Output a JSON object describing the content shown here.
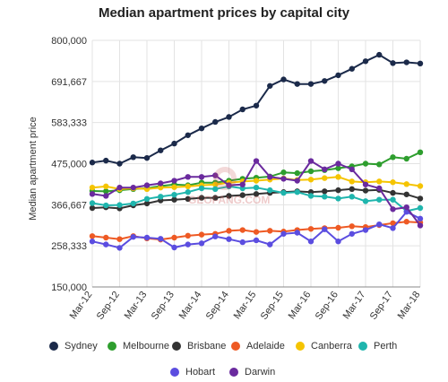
{
  "chart_data": {
    "type": "line",
    "title": "Median apartment prices by capital city",
    "xlabel": "",
    "ylabel": "Median apartment price",
    "ylim": [
      150000,
      800000
    ],
    "yticks": [
      150000,
      258333,
      366667,
      475000,
      583333,
      691667,
      800000
    ],
    "ytick_labels": [
      "150,000",
      "258,333",
      "366,667",
      "475,000",
      "583,333",
      "691,667",
      "800,000"
    ],
    "xtick_labels": [
      "Mar-12",
      "Sep-12",
      "Mar-13",
      "Sep-13",
      "Mar-14",
      "Sep-14",
      "Mar-15",
      "Sep-15",
      "Mar-16",
      "Sep-16",
      "Mar-17",
      "Sep-17",
      "Mar-18"
    ],
    "x": [
      "Mar-12",
      "Jun-12",
      "Sep-12",
      "Dec-12",
      "Mar-13",
      "Jun-13",
      "Sep-13",
      "Dec-13",
      "Mar-14",
      "Jun-14",
      "Sep-14",
      "Dec-14",
      "Mar-15",
      "Jun-15",
      "Sep-15",
      "Dec-15",
      "Mar-16",
      "Jun-16",
      "Sep-16",
      "Dec-16",
      "Mar-17",
      "Jun-17",
      "Sep-17",
      "Dec-17",
      "Mar-18"
    ],
    "grid": true,
    "legend_position": "bottom",
    "series": [
      {
        "name": "Sydney",
        "color": "#1b2a4a",
        "values": [
          478000,
          483000,
          475000,
          492000,
          490000,
          510000,
          528000,
          550000,
          568000,
          585000,
          598000,
          618000,
          628000,
          680000,
          697000,
          685000,
          685000,
          693000,
          708000,
          725000,
          745000,
          762000,
          740000,
          742000,
          739000
        ]
      },
      {
        "name": "Melbourne",
        "color": "#2e9e2e",
        "values": [
          403000,
          402000,
          405000,
          408000,
          410000,
          416000,
          420000,
          418000,
          425000,
          425000,
          430000,
          435000,
          438000,
          441000,
          452000,
          450000,
          455000,
          458000,
          463000,
          468000,
          475000,
          473000,
          492000,
          488000,
          505000
        ]
      },
      {
        "name": "Brisbane",
        "color": "#333333",
        "values": [
          358000,
          360000,
          357000,
          365000,
          370000,
          378000,
          380000,
          382000,
          385000,
          385000,
          390000,
          392000,
          395000,
          398000,
          400000,
          402000,
          400000,
          402000,
          405000,
          408000,
          404000,
          406000,
          398000,
          394000,
          383000
        ]
      },
      {
        "name": "Adelaide",
        "color": "#ee5a24",
        "values": [
          284000,
          280000,
          276000,
          284000,
          278000,
          275000,
          280000,
          285000,
          288000,
          290000,
          298000,
          300000,
          295000,
          298000,
          296000,
          300000,
          303000,
          305000,
          306000,
          310000,
          308000,
          313000,
          318000,
          322000,
          320000
        ]
      },
      {
        "name": "Canberra",
        "color": "#f5c400",
        "values": [
          412000,
          415000,
          408000,
          410000,
          408000,
          412000,
          413000,
          415000,
          418000,
          420000,
          425000,
          428000,
          430000,
          433000,
          436000,
          432000,
          433000,
          437000,
          440000,
          428000,
          426000,
          428000,
          426000,
          421000,
          416000
        ]
      },
      {
        "name": "Perth",
        "color": "#1fb5ad",
        "values": [
          371000,
          365000,
          366000,
          370000,
          382000,
          388000,
          393000,
          400000,
          410000,
          408000,
          415000,
          410000,
          412000,
          405000,
          398000,
          400000,
          390000,
          388000,
          383000,
          388000,
          376000,
          380000,
          380000,
          350000,
          358000
        ]
      },
      {
        "name": "Hobart",
        "color": "#5b4de0",
        "values": [
          270000,
          262000,
          253000,
          282000,
          280000,
          277000,
          254000,
          262000,
          265000,
          283000,
          276000,
          268000,
          273000,
          262000,
          290000,
          293000,
          270000,
          302000,
          270000,
          290000,
          300000,
          315000,
          305000,
          348000,
          330000
        ]
      },
      {
        "name": "Darwin",
        "color": "#6a2a9e",
        "values": [
          395000,
          390000,
          412000,
          412000,
          418000,
          423000,
          430000,
          440000,
          440000,
          444000,
          418000,
          420000,
          482000,
          440000,
          435000,
          430000,
          482000,
          460000,
          475000,
          460000,
          420000,
          410000,
          355000,
          360000,
          312000
        ]
      }
    ]
  },
  "watermark": {
    "text": "GEOFANG.COM"
  }
}
